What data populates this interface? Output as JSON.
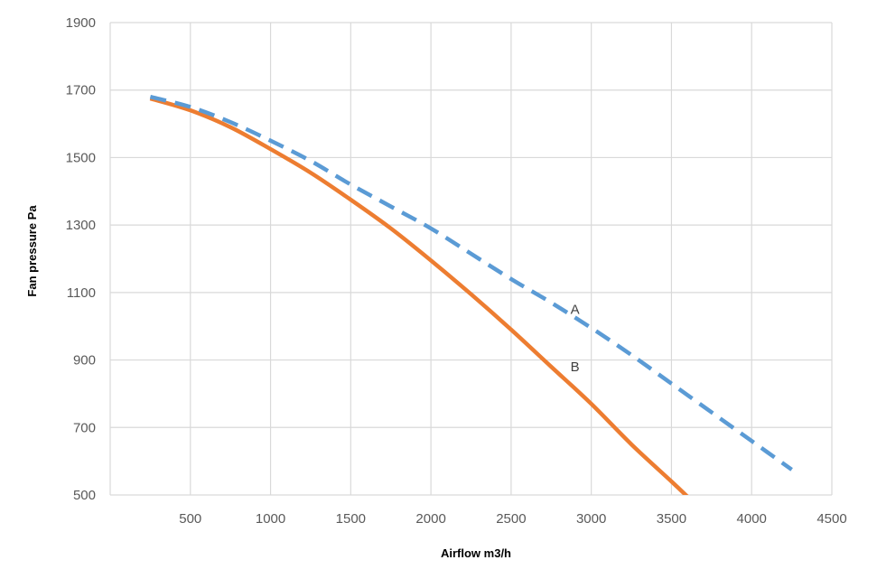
{
  "chart_data": {
    "type": "line",
    "title": "",
    "xlabel": "Airflow  m3/h",
    "ylabel": "Fan pressure  Pa",
    "xlim": [
      0,
      4500
    ],
    "ylim": [
      500,
      1900
    ],
    "x_ticks": [
      500,
      1000,
      1500,
      2000,
      2500,
      3000,
      3500,
      4000,
      4500
    ],
    "y_ticks": [
      500,
      700,
      900,
      1100,
      1300,
      1500,
      1700,
      1900
    ],
    "grid": true,
    "legend": "none",
    "series": [
      {
        "name": "A",
        "color": "#5b9bd5",
        "style": "dashed",
        "x": [
          250,
          500,
          750,
          1000,
          1250,
          1500,
          1750,
          2000,
          2250,
          2500,
          2750,
          3000,
          3250,
          3500,
          3750,
          4000,
          4250
        ],
        "y": [
          1680,
          1650,
          1605,
          1550,
          1490,
          1420,
          1355,
          1290,
          1215,
          1140,
          1070,
          995,
          915,
          830,
          745,
          660,
          575
        ]
      },
      {
        "name": "B",
        "color": "#ed7d31",
        "style": "solid",
        "x": [
          250,
          500,
          750,
          1000,
          1250,
          1500,
          1750,
          2000,
          2250,
          2500,
          2750,
          3000,
          3250,
          3500,
          3600
        ],
        "y": [
          1675,
          1640,
          1590,
          1525,
          1455,
          1375,
          1290,
          1195,
          1095,
          990,
          880,
          770,
          650,
          540,
          495
        ]
      }
    ],
    "annotations": [
      {
        "text": "A",
        "x": 2870,
        "y": 1050
      },
      {
        "text": "B",
        "x": 2870,
        "y": 880
      }
    ]
  }
}
